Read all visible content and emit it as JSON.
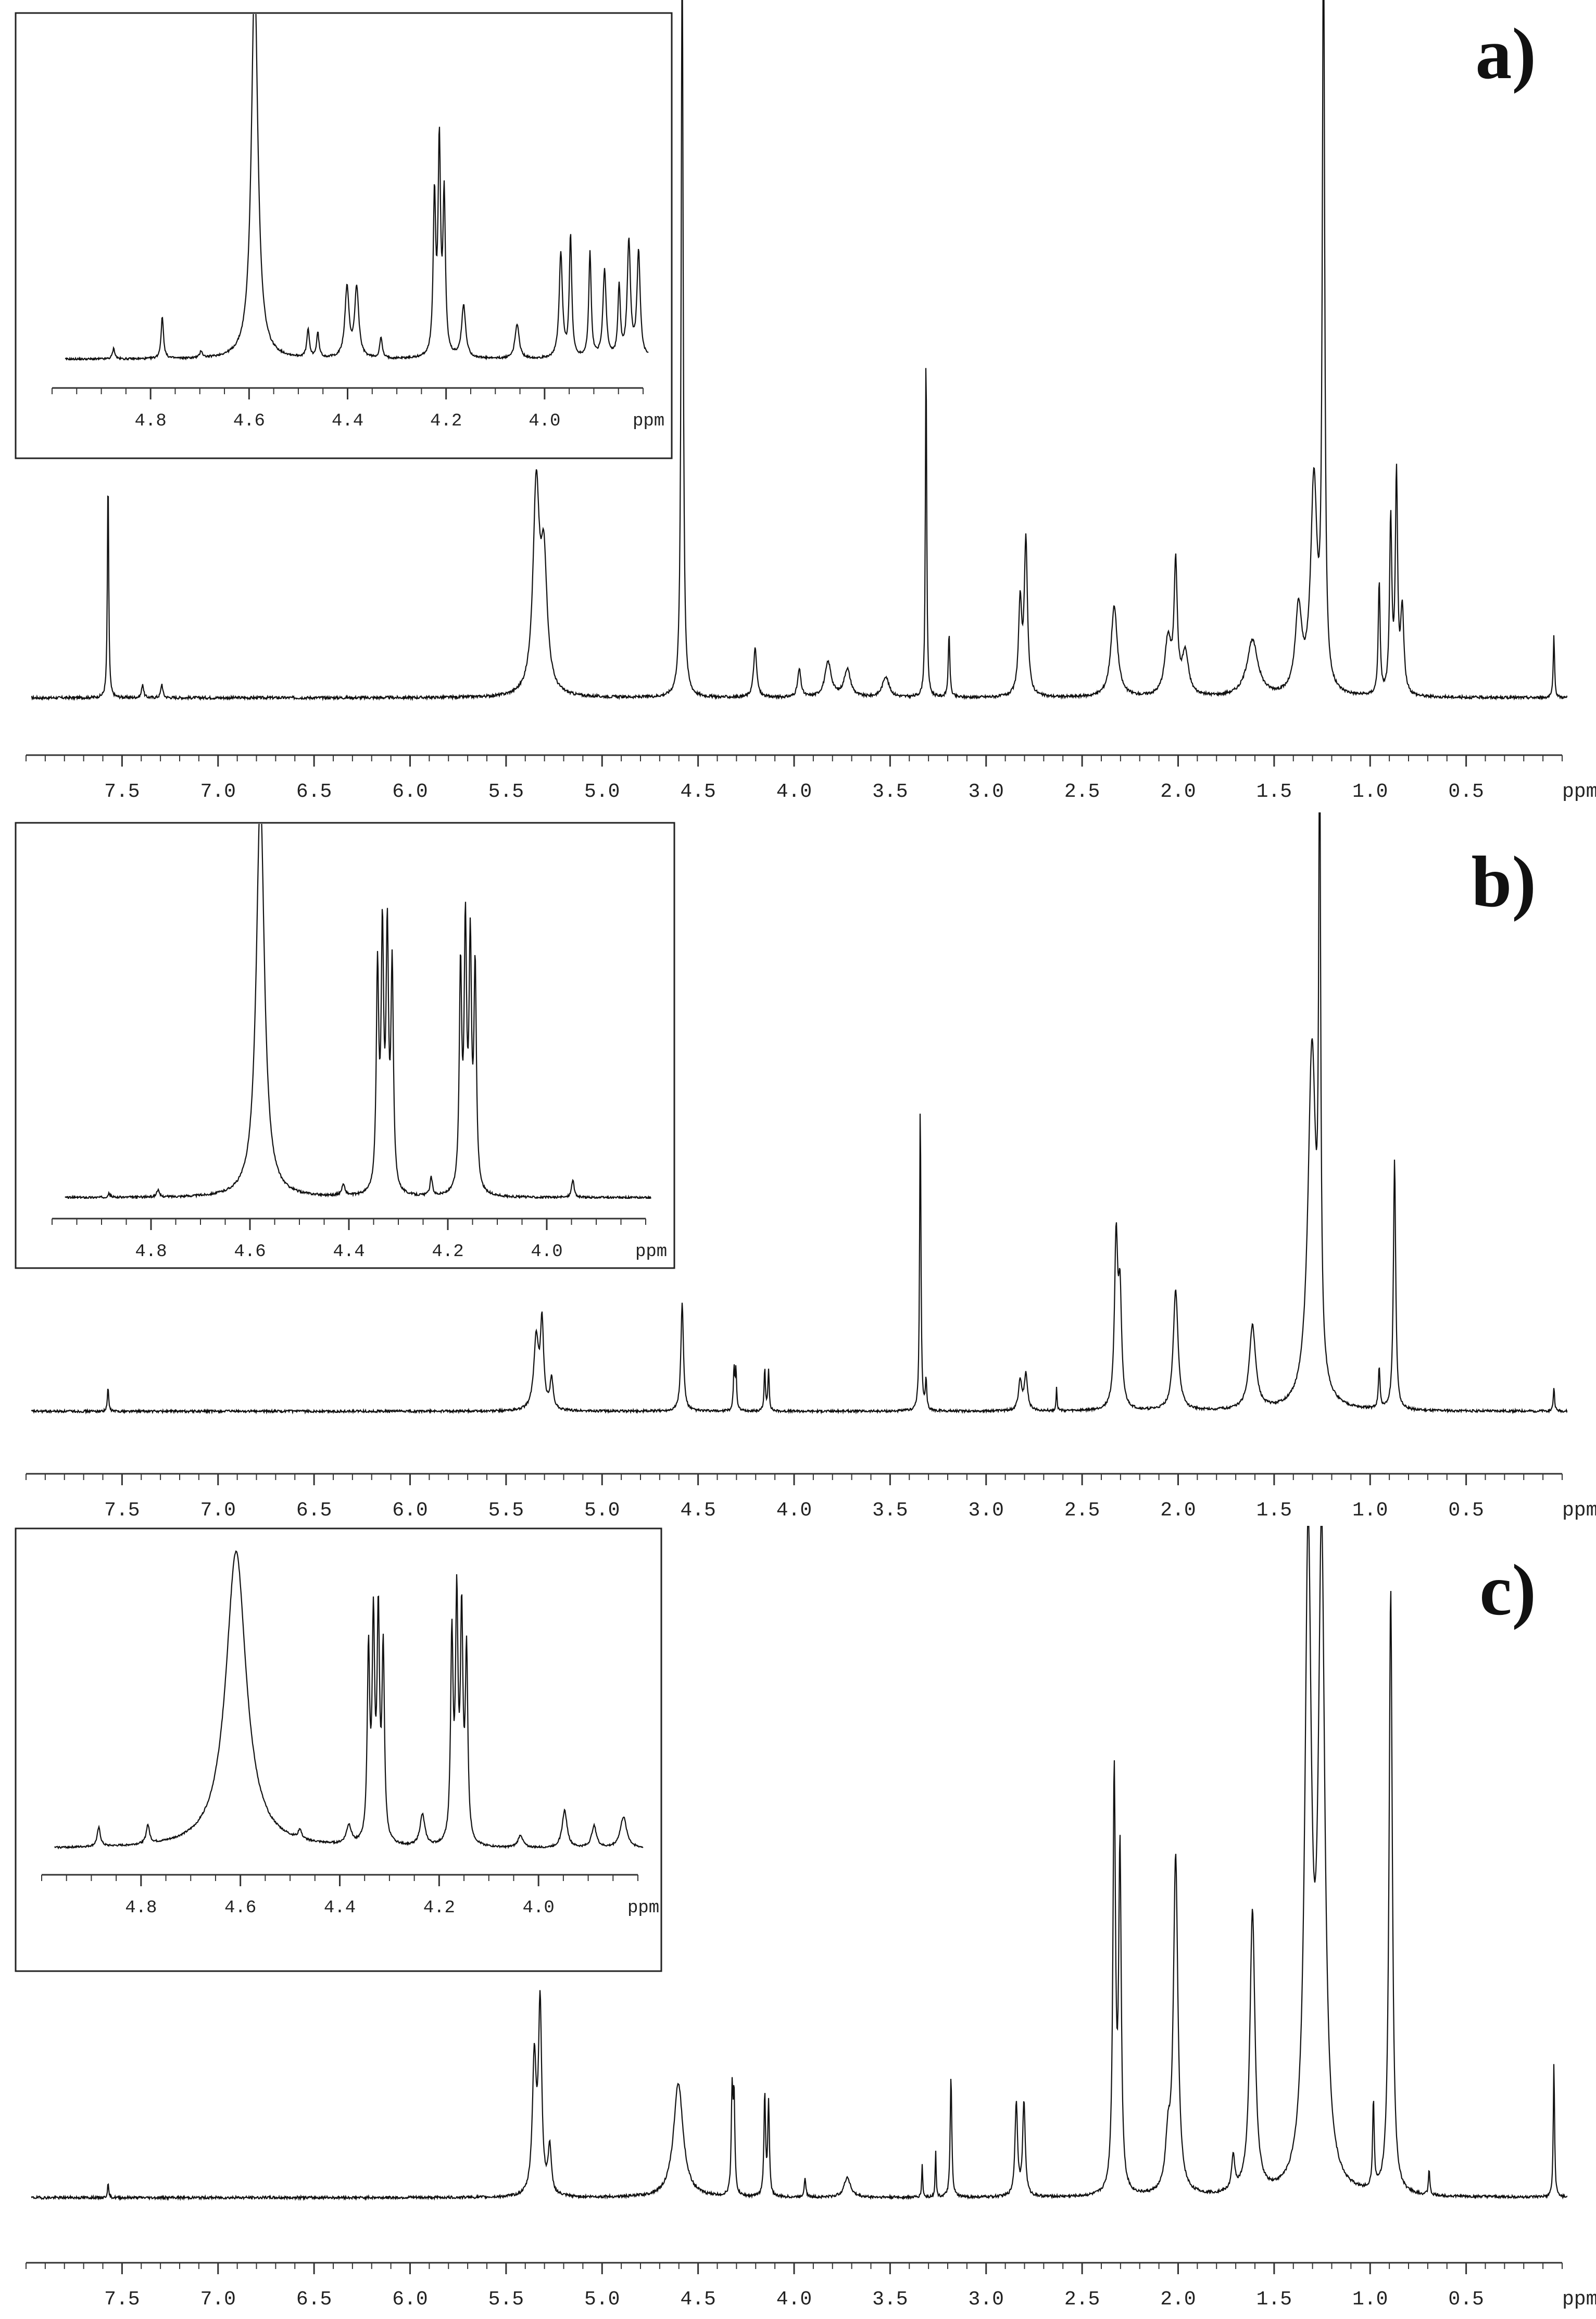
{
  "chart_data": [
    {
      "type": "line",
      "panel_label": "a)",
      "xlabel_unit": "ppm",
      "x_reversed": true,
      "xlim": [
        8.0,
        0.0
      ],
      "tick_labels": [
        "7.5",
        "7.0",
        "6.5",
        "6.0",
        "5.5",
        "5.0",
        "4.5",
        "4.0",
        "3.5",
        "3.0",
        "2.5",
        "2.0",
        "1.5",
        "1.0",
        "0.5"
      ],
      "peaks": [
        {
          "x": 7.6,
          "h": 0.32,
          "w": 0.004
        },
        {
          "x": 7.42,
          "h": 0.02,
          "w": 0.006
        },
        {
          "x": 7.32,
          "h": 0.02,
          "w": 0.006
        },
        {
          "x": 5.37,
          "h": 0.29,
          "w": 0.02
        },
        {
          "x": 5.33,
          "h": 0.18,
          "w": 0.02
        },
        {
          "x": 4.61,
          "h": 1.1,
          "w": 0.006
        },
        {
          "x": 4.23,
          "h": 0.07,
          "w": 0.01
        },
        {
          "x": 4.0,
          "h": 0.04,
          "w": 0.01
        },
        {
          "x": 3.85,
          "h": 0.05,
          "w": 0.02
        },
        {
          "x": 3.75,
          "h": 0.04,
          "w": 0.02
        },
        {
          "x": 3.55,
          "h": 0.03,
          "w": 0.02
        },
        {
          "x": 3.34,
          "h": 0.5,
          "w": 0.004
        },
        {
          "x": 3.22,
          "h": 0.09,
          "w": 0.005
        },
        {
          "x": 2.85,
          "h": 0.13,
          "w": 0.01
        },
        {
          "x": 2.82,
          "h": 0.22,
          "w": 0.01
        },
        {
          "x": 2.36,
          "h": 0.13,
          "w": 0.02
        },
        {
          "x": 2.08,
          "h": 0.08,
          "w": 0.02
        },
        {
          "x": 2.04,
          "h": 0.18,
          "w": 0.01
        },
        {
          "x": 1.99,
          "h": 0.06,
          "w": 0.02
        },
        {
          "x": 1.64,
          "h": 0.08,
          "w": 0.035
        },
        {
          "x": 1.4,
          "h": 0.12,
          "w": 0.02
        },
        {
          "x": 1.32,
          "h": 0.3,
          "w": 0.02
        },
        {
          "x": 1.27,
          "h": 1.1,
          "w": 0.007
        },
        {
          "x": 0.98,
          "h": 0.16,
          "w": 0.006
        },
        {
          "x": 0.92,
          "h": 0.25,
          "w": 0.007
        },
        {
          "x": 0.89,
          "h": 0.31,
          "w": 0.007
        },
        {
          "x": 0.86,
          "h": 0.12,
          "w": 0.01
        },
        {
          "x": 0.07,
          "h": 0.09,
          "w": 0.004
        }
      ],
      "inset": {
        "xlim": [
          5.0,
          3.8
        ],
        "xlabel_unit": "ppm",
        "tick_labels": [
          "4.8",
          "4.6",
          "4.4",
          "4.2",
          "4.0"
        ],
        "peaks": [
          {
            "x": 4.9,
            "h": 0.03,
            "w": 0.003
          },
          {
            "x": 4.8,
            "h": 0.12,
            "w": 0.003
          },
          {
            "x": 4.72,
            "h": 0.02,
            "w": 0.003
          },
          {
            "x": 4.61,
            "h": 1.1,
            "w": 0.008
          },
          {
            "x": 4.5,
            "h": 0.08,
            "w": 0.003
          },
          {
            "x": 4.48,
            "h": 0.07,
            "w": 0.003
          },
          {
            "x": 4.42,
            "h": 0.2,
            "w": 0.005
          },
          {
            "x": 4.4,
            "h": 0.2,
            "w": 0.005
          },
          {
            "x": 4.35,
            "h": 0.06,
            "w": 0.003
          },
          {
            "x": 4.24,
            "h": 0.45,
            "w": 0.003
          },
          {
            "x": 4.23,
            "h": 0.6,
            "w": 0.003
          },
          {
            "x": 4.22,
            "h": 0.45,
            "w": 0.003
          },
          {
            "x": 4.18,
            "h": 0.15,
            "w": 0.005
          },
          {
            "x": 4.07,
            "h": 0.1,
            "w": 0.005
          },
          {
            "x": 3.98,
            "h": 0.3,
            "w": 0.004
          },
          {
            "x": 3.96,
            "h": 0.35,
            "w": 0.003
          },
          {
            "x": 3.92,
            "h": 0.3,
            "w": 0.003
          },
          {
            "x": 3.89,
            "h": 0.25,
            "w": 0.004
          },
          {
            "x": 3.86,
            "h": 0.2,
            "w": 0.003
          },
          {
            "x": 3.84,
            "h": 0.33,
            "w": 0.004
          },
          {
            "x": 3.82,
            "h": 0.3,
            "w": 0.004
          }
        ]
      }
    },
    {
      "type": "line",
      "panel_label": "b)",
      "xlabel_unit": "ppm",
      "x_reversed": true,
      "xlim": [
        8.0,
        0.0
      ],
      "tick_labels": [
        "7.5",
        "7.0",
        "6.5",
        "6.0",
        "5.5",
        "5.0",
        "4.5",
        "4.0",
        "3.5",
        "3.0",
        "2.5",
        "2.0",
        "1.5",
        "1.0",
        "0.5"
      ],
      "peaks": [
        {
          "x": 7.6,
          "h": 0.04,
          "w": 0.004
        },
        {
          "x": 5.37,
          "h": 0.12,
          "w": 0.015
        },
        {
          "x": 5.34,
          "h": 0.14,
          "w": 0.01
        },
        {
          "x": 5.29,
          "h": 0.05,
          "w": 0.01
        },
        {
          "x": 4.61,
          "h": 0.18,
          "w": 0.008
        },
        {
          "x": 4.34,
          "h": 0.07,
          "w": 0.004
        },
        {
          "x": 4.33,
          "h": 0.07,
          "w": 0.004
        },
        {
          "x": 4.18,
          "h": 0.07,
          "w": 0.004
        },
        {
          "x": 4.16,
          "h": 0.07,
          "w": 0.004
        },
        {
          "x": 3.37,
          "h": 0.52,
          "w": 0.004
        },
        {
          "x": 3.34,
          "h": 0.05,
          "w": 0.004
        },
        {
          "x": 2.85,
          "h": 0.05,
          "w": 0.01
        },
        {
          "x": 2.82,
          "h": 0.06,
          "w": 0.01
        },
        {
          "x": 2.66,
          "h": 0.04,
          "w": 0.003
        },
        {
          "x": 2.35,
          "h": 0.28,
          "w": 0.01
        },
        {
          "x": 2.33,
          "h": 0.18,
          "w": 0.01
        },
        {
          "x": 2.04,
          "h": 0.2,
          "w": 0.015
        },
        {
          "x": 1.64,
          "h": 0.14,
          "w": 0.02
        },
        {
          "x": 1.33,
          "h": 0.6,
          "w": 0.025
        },
        {
          "x": 1.29,
          "h": 1.0,
          "w": 0.006
        },
        {
          "x": 0.98,
          "h": 0.07,
          "w": 0.005
        },
        {
          "x": 0.9,
          "h": 0.42,
          "w": 0.007
        },
        {
          "x": 0.07,
          "h": 0.04,
          "w": 0.004
        }
      ],
      "inset": {
        "xlim": [
          5.0,
          3.8
        ],
        "xlabel_unit": "ppm",
        "tick_labels": [
          "4.8",
          "4.6",
          "4.4",
          "4.2",
          "4.0"
        ],
        "peaks": [
          {
            "x": 4.91,
            "h": 0.01,
            "w": 0.003
          },
          {
            "x": 4.81,
            "h": 0.02,
            "w": 0.003
          },
          {
            "x": 4.6,
            "h": 1.1,
            "w": 0.01
          },
          {
            "x": 4.43,
            "h": 0.03,
            "w": 0.004
          },
          {
            "x": 4.36,
            "h": 0.6,
            "w": 0.003
          },
          {
            "x": 4.35,
            "h": 0.68,
            "w": 0.003
          },
          {
            "x": 4.34,
            "h": 0.68,
            "w": 0.003
          },
          {
            "x": 4.33,
            "h": 0.6,
            "w": 0.003
          },
          {
            "x": 4.25,
            "h": 0.05,
            "w": 0.003
          },
          {
            "x": 4.19,
            "h": 0.6,
            "w": 0.003
          },
          {
            "x": 4.18,
            "h": 0.7,
            "w": 0.003
          },
          {
            "x": 4.17,
            "h": 0.65,
            "w": 0.003
          },
          {
            "x": 4.16,
            "h": 0.6,
            "w": 0.003
          },
          {
            "x": 3.96,
            "h": 0.05,
            "w": 0.003
          }
        ]
      }
    },
    {
      "type": "line",
      "panel_label": "c)",
      "xlabel_unit": "ppm",
      "x_reversed": true,
      "xlim": [
        8.0,
        0.0
      ],
      "tick_labels": [
        "7.5",
        "7.0",
        "6.5",
        "6.0",
        "5.5",
        "5.0",
        "4.5",
        "4.0",
        "3.5",
        "3.0",
        "2.5",
        "2.0",
        "1.5",
        "1.0",
        "0.5"
      ],
      "peaks": [
        {
          "x": 7.6,
          "h": 0.02,
          "w": 0.004
        },
        {
          "x": 5.38,
          "h": 0.2,
          "w": 0.012
        },
        {
          "x": 5.35,
          "h": 0.28,
          "w": 0.01
        },
        {
          "x": 5.3,
          "h": 0.07,
          "w": 0.01
        },
        {
          "x": 4.63,
          "h": 0.17,
          "w": 0.03
        },
        {
          "x": 4.35,
          "h": 0.15,
          "w": 0.005
        },
        {
          "x": 4.34,
          "h": 0.14,
          "w": 0.005
        },
        {
          "x": 4.18,
          "h": 0.15,
          "w": 0.005
        },
        {
          "x": 4.16,
          "h": 0.14,
          "w": 0.005
        },
        {
          "x": 3.97,
          "h": 0.03,
          "w": 0.005
        },
        {
          "x": 3.75,
          "h": 0.03,
          "w": 0.02
        },
        {
          "x": 3.36,
          "h": 0.05,
          "w": 0.003
        },
        {
          "x": 3.29,
          "h": 0.07,
          "w": 0.003
        },
        {
          "x": 3.21,
          "h": 0.18,
          "w": 0.005
        },
        {
          "x": 2.87,
          "h": 0.14,
          "w": 0.008
        },
        {
          "x": 2.83,
          "h": 0.14,
          "w": 0.008
        },
        {
          "x": 2.36,
          "h": 0.62,
          "w": 0.008
        },
        {
          "x": 2.33,
          "h": 0.5,
          "w": 0.008
        },
        {
          "x": 2.08,
          "h": 0.07,
          "w": 0.015
        },
        {
          "x": 2.04,
          "h": 0.5,
          "w": 0.014
        },
        {
          "x": 1.74,
          "h": 0.05,
          "w": 0.01
        },
        {
          "x": 1.64,
          "h": 0.42,
          "w": 0.016
        },
        {
          "x": 1.35,
          "h": 0.95,
          "w": 0.02
        },
        {
          "x": 1.28,
          "h": 0.95,
          "w": 0.02
        },
        {
          "x": 1.01,
          "h": 0.13,
          "w": 0.005
        },
        {
          "x": 0.92,
          "h": 0.9,
          "w": 0.01
        },
        {
          "x": 0.72,
          "h": 0.04,
          "w": 0.004
        },
        {
          "x": 0.07,
          "h": 0.2,
          "w": 0.004
        }
      ],
      "inset": {
        "xlim": [
          5.0,
          3.8
        ],
        "xlabel_unit": "ppm",
        "tick_labels": [
          "4.8",
          "4.6",
          "4.4",
          "4.2",
          "4.0"
        ],
        "peaks": [
          {
            "x": 4.91,
            "h": 0.06,
            "w": 0.004
          },
          {
            "x": 4.81,
            "h": 0.06,
            "w": 0.004
          },
          {
            "x": 4.63,
            "h": 0.95,
            "w": 0.025
          },
          {
            "x": 4.5,
            "h": 0.03,
            "w": 0.004
          },
          {
            "x": 4.4,
            "h": 0.06,
            "w": 0.006
          },
          {
            "x": 4.36,
            "h": 0.6,
            "w": 0.003
          },
          {
            "x": 4.35,
            "h": 0.68,
            "w": 0.003
          },
          {
            "x": 4.34,
            "h": 0.7,
            "w": 0.003
          },
          {
            "x": 4.33,
            "h": 0.6,
            "w": 0.003
          },
          {
            "x": 4.25,
            "h": 0.1,
            "w": 0.006
          },
          {
            "x": 4.19,
            "h": 0.65,
            "w": 0.003
          },
          {
            "x": 4.18,
            "h": 0.75,
            "w": 0.003
          },
          {
            "x": 4.17,
            "h": 0.7,
            "w": 0.003
          },
          {
            "x": 4.16,
            "h": 0.6,
            "w": 0.003
          },
          {
            "x": 4.05,
            "h": 0.04,
            "w": 0.006
          },
          {
            "x": 3.96,
            "h": 0.12,
            "w": 0.006
          },
          {
            "x": 3.9,
            "h": 0.07,
            "w": 0.006
          },
          {
            "x": 3.84,
            "h": 0.1,
            "w": 0.008
          }
        ]
      }
    }
  ]
}
